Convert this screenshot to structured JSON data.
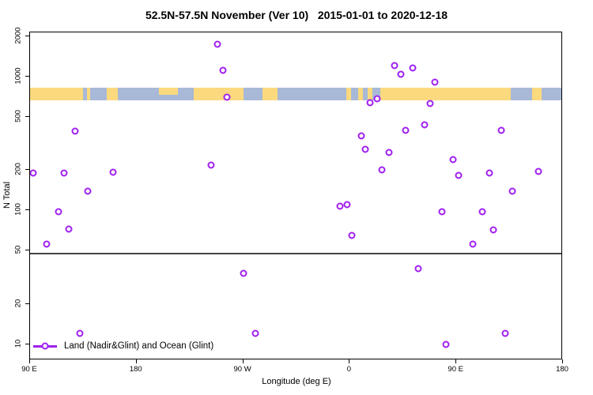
{
  "title": "52.5N-57.5N November (Ver 10)   2015-01-01 to 2020-12-18",
  "legend": {
    "label": "Land (Nadir&Glint) and Ocean (Glint)"
  },
  "axes": {
    "x_label": "Longitude (deg E)",
    "y_label": "N Total"
  },
  "colors": {
    "point": "#A020F0",
    "land": "#FBD97E",
    "ocean": "#A8B9D7",
    "reference_line": "#444444",
    "axis": "#000000"
  },
  "chart_data": {
    "type": "scatter",
    "title": "52.5N-57.5N November (Ver 10)   2015-01-01 to 2020-12-18",
    "xlabel": "Longitude (deg E)",
    "ylabel": "N Total",
    "x_axis": {
      "lim": [
        90,
        540
      ],
      "ticks": [
        {
          "value": 90,
          "label": "90 E"
        },
        {
          "value": 180,
          "label": "180"
        },
        {
          "value": 270,
          "label": "90 W"
        },
        {
          "value": 360,
          "label": "0"
        },
        {
          "value": 450,
          "label": "90 E"
        },
        {
          "value": 540,
          "label": "180"
        }
      ]
    },
    "y_axis": {
      "scale": "log",
      "lim": [
        7.6,
        2140
      ],
      "ticks": [
        10,
        20,
        50,
        100,
        200,
        500,
        1000,
        2000
      ]
    },
    "reference_line_y": 48,
    "map_band": {
      "description": "land-ocean strip for 52.5N-57.5N vs longitude",
      "value_range": [
        665,
        827
      ],
      "ocean_segments_lon": [
        [
          135,
          155
        ],
        [
          164,
          228
        ],
        [
          270,
          286
        ],
        [
          299,
          386
        ],
        [
          496,
          514
        ],
        [
          522,
          540
        ]
      ],
      "land_islands_lon": [
        {
          "range": [
            138,
            141
          ],
          "half": false
        },
        {
          "range": [
            199,
            215
          ],
          "half": true
        },
        {
          "range": [
            357,
            361
          ],
          "half": false
        },
        {
          "range": [
            367,
            371
          ],
          "half": false
        },
        {
          "range": [
            375,
            379
          ],
          "half": false
        }
      ]
    },
    "legend_position": "bottom-left",
    "series": [
      {
        "name": "Land (Nadir&Glint) and Ocean (Glint)",
        "marker": "open-circle",
        "color": "#A020F0",
        "points": [
          [
            93,
            190
          ],
          [
            104,
            56
          ],
          [
            114,
            98
          ],
          [
            119,
            190
          ],
          [
            123,
            73
          ],
          [
            128,
            390
          ],
          [
            132,
            12
          ],
          [
            139,
            140
          ],
          [
            160,
            193
          ],
          [
            243,
            218
          ],
          [
            248,
            1750
          ],
          [
            253,
            1120
          ],
          [
            256,
            700
          ],
          [
            270,
            34
          ],
          [
            280,
            12
          ],
          [
            352,
            107
          ],
          [
            358,
            110
          ],
          [
            362,
            65
          ],
          [
            370,
            360
          ],
          [
            373,
            287
          ],
          [
            377,
            640
          ],
          [
            383,
            685
          ],
          [
            387,
            200
          ],
          [
            393,
            272
          ],
          [
            398,
            1210
          ],
          [
            403,
            1040
          ],
          [
            407,
            397
          ],
          [
            413,
            1160
          ],
          [
            418,
            37
          ],
          [
            423,
            437
          ],
          [
            428,
            630
          ],
          [
            432,
            910
          ],
          [
            438,
            98
          ],
          [
            441,
            10
          ],
          [
            447,
            240
          ],
          [
            452,
            184
          ],
          [
            464,
            56
          ],
          [
            472,
            98
          ],
          [
            478,
            190
          ],
          [
            481,
            72
          ],
          [
            488,
            397
          ],
          [
            491,
            12
          ],
          [
            497,
            140
          ],
          [
            519,
            195
          ]
        ]
      }
    ]
  }
}
